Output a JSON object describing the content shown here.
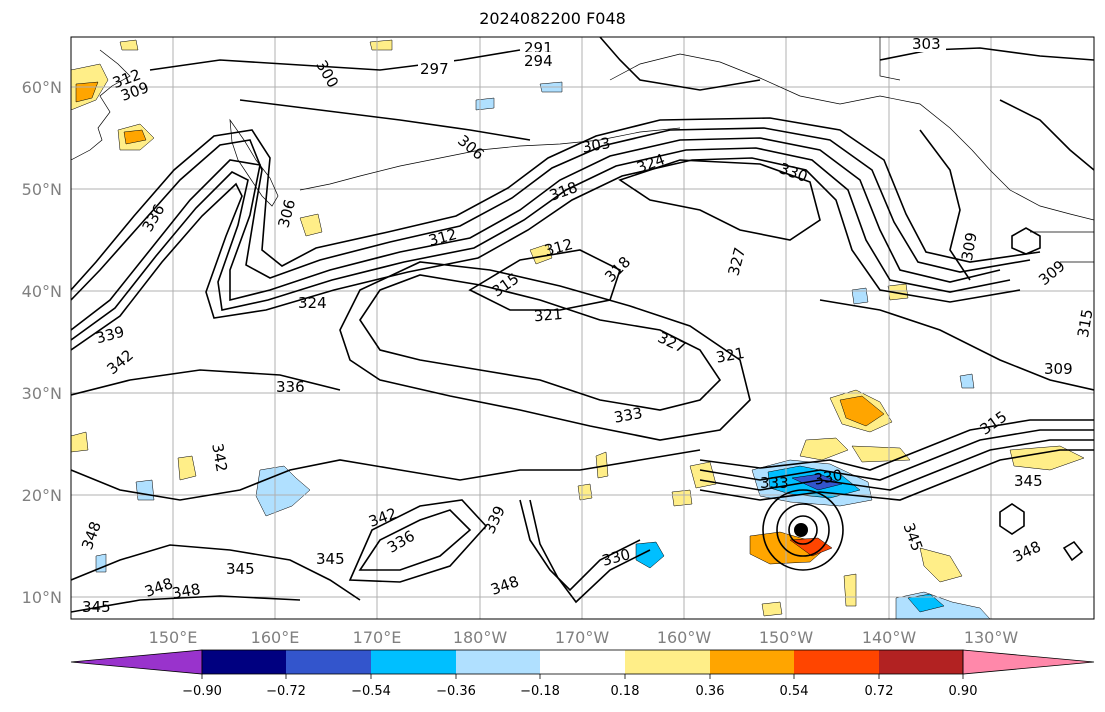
{
  "title": "2024082200 F048",
  "lat_labels": [
    "60°N",
    "50°N",
    "40°N",
    "30°N",
    "20°N",
    "10°N"
  ],
  "lon_labels": [
    "150°E",
    "160°E",
    "170°E",
    "180°W",
    "170°W",
    "160°W",
    "150°W",
    "140°W",
    "130°W"
  ],
  "colorbar": {
    "colors": [
      "#9933cc",
      "#000080",
      "#3355cc",
      "#00bfff",
      "#b0e0ff",
      "#ffffff",
      "#ffee88",
      "#ffa500",
      "#ff4500",
      "#b22222",
      "#ff88aa"
    ],
    "tick_labels": [
      "−0.90",
      "−0.72",
      "−0.54",
      "−0.36",
      "−0.18",
      "0.18",
      "0.36",
      "0.54",
      "0.72",
      "0.90"
    ]
  },
  "contour_labels": [
    "291",
    "294",
    "297",
    "300",
    "303",
    "303",
    "306",
    "306",
    "309",
    "309",
    "309",
    "309",
    "312",
    "312",
    "312",
    "315",
    "315",
    "315",
    "318",
    "318",
    "321",
    "321",
    "324",
    "324",
    "327",
    "327",
    "330",
    "330",
    "330",
    "333",
    "333",
    "336",
    "336",
    "336",
    "339",
    "339",
    "342",
    "342",
    "342",
    "345",
    "345",
    "345",
    "345",
    "345",
    "348",
    "348",
    "348",
    "348",
    "348"
  ]
}
